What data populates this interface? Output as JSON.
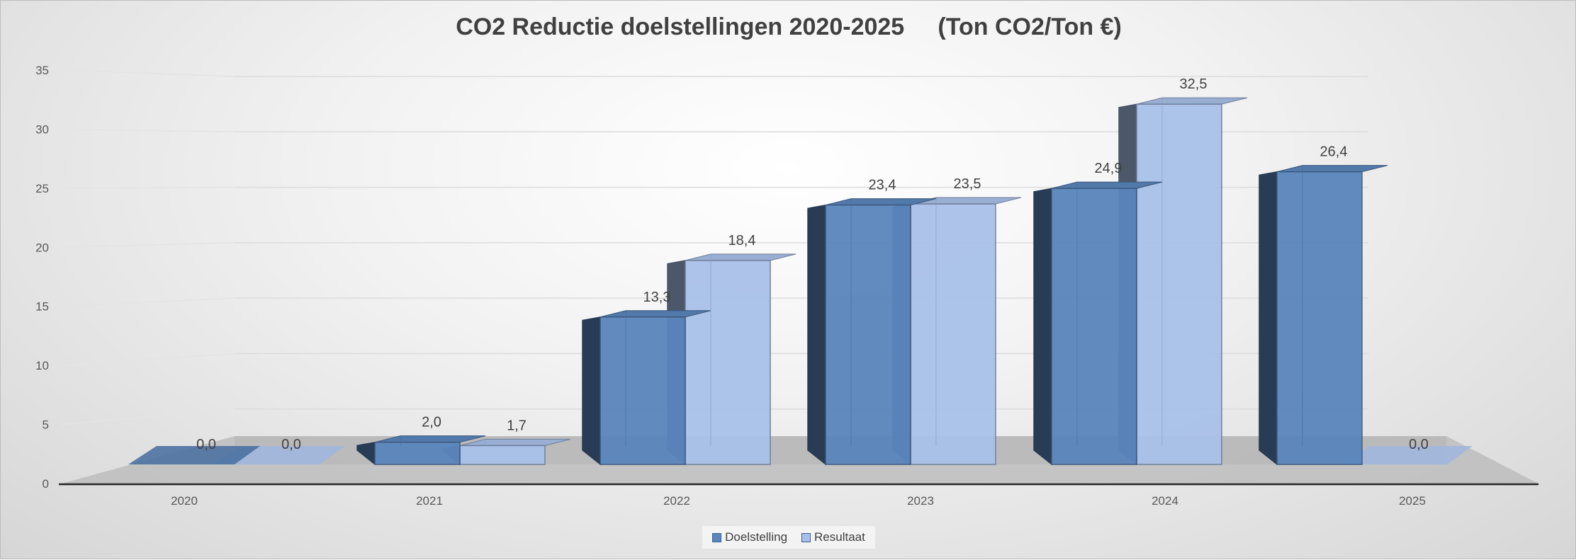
{
  "chart_data": {
    "type": "bar",
    "title": "CO2 Reductie doelstellingen 2020-2025     (Ton CO2/Ton €)",
    "categories": [
      "2020",
      "2021",
      "2022",
      "2023",
      "2024",
      "2025"
    ],
    "series": [
      {
        "name": "Doelstelling",
        "values": [
          0.0,
          2.0,
          13.3,
          23.4,
          24.9,
          26.4
        ],
        "labels": [
          "0,0",
          "2,0",
          "13,3",
          "23,4",
          "24,9",
          "26,4"
        ],
        "color": "#5a86bd"
      },
      {
        "name": "Resultaat",
        "values": [
          0.0,
          1.7,
          18.4,
          23.5,
          32.5,
          0.0
        ],
        "labels": [
          "0,0",
          "1,7",
          "18,4",
          "23,5",
          "32,5",
          "0,0"
        ],
        "color": "#a9c1ea"
      }
    ],
    "y_ticks": [
      "0",
      "5",
      "10",
      "15",
      "20",
      "25",
      "30",
      "35"
    ],
    "ylim": [
      0,
      35
    ],
    "grid": true,
    "legend_position": "bottom",
    "style": "3d-column"
  }
}
